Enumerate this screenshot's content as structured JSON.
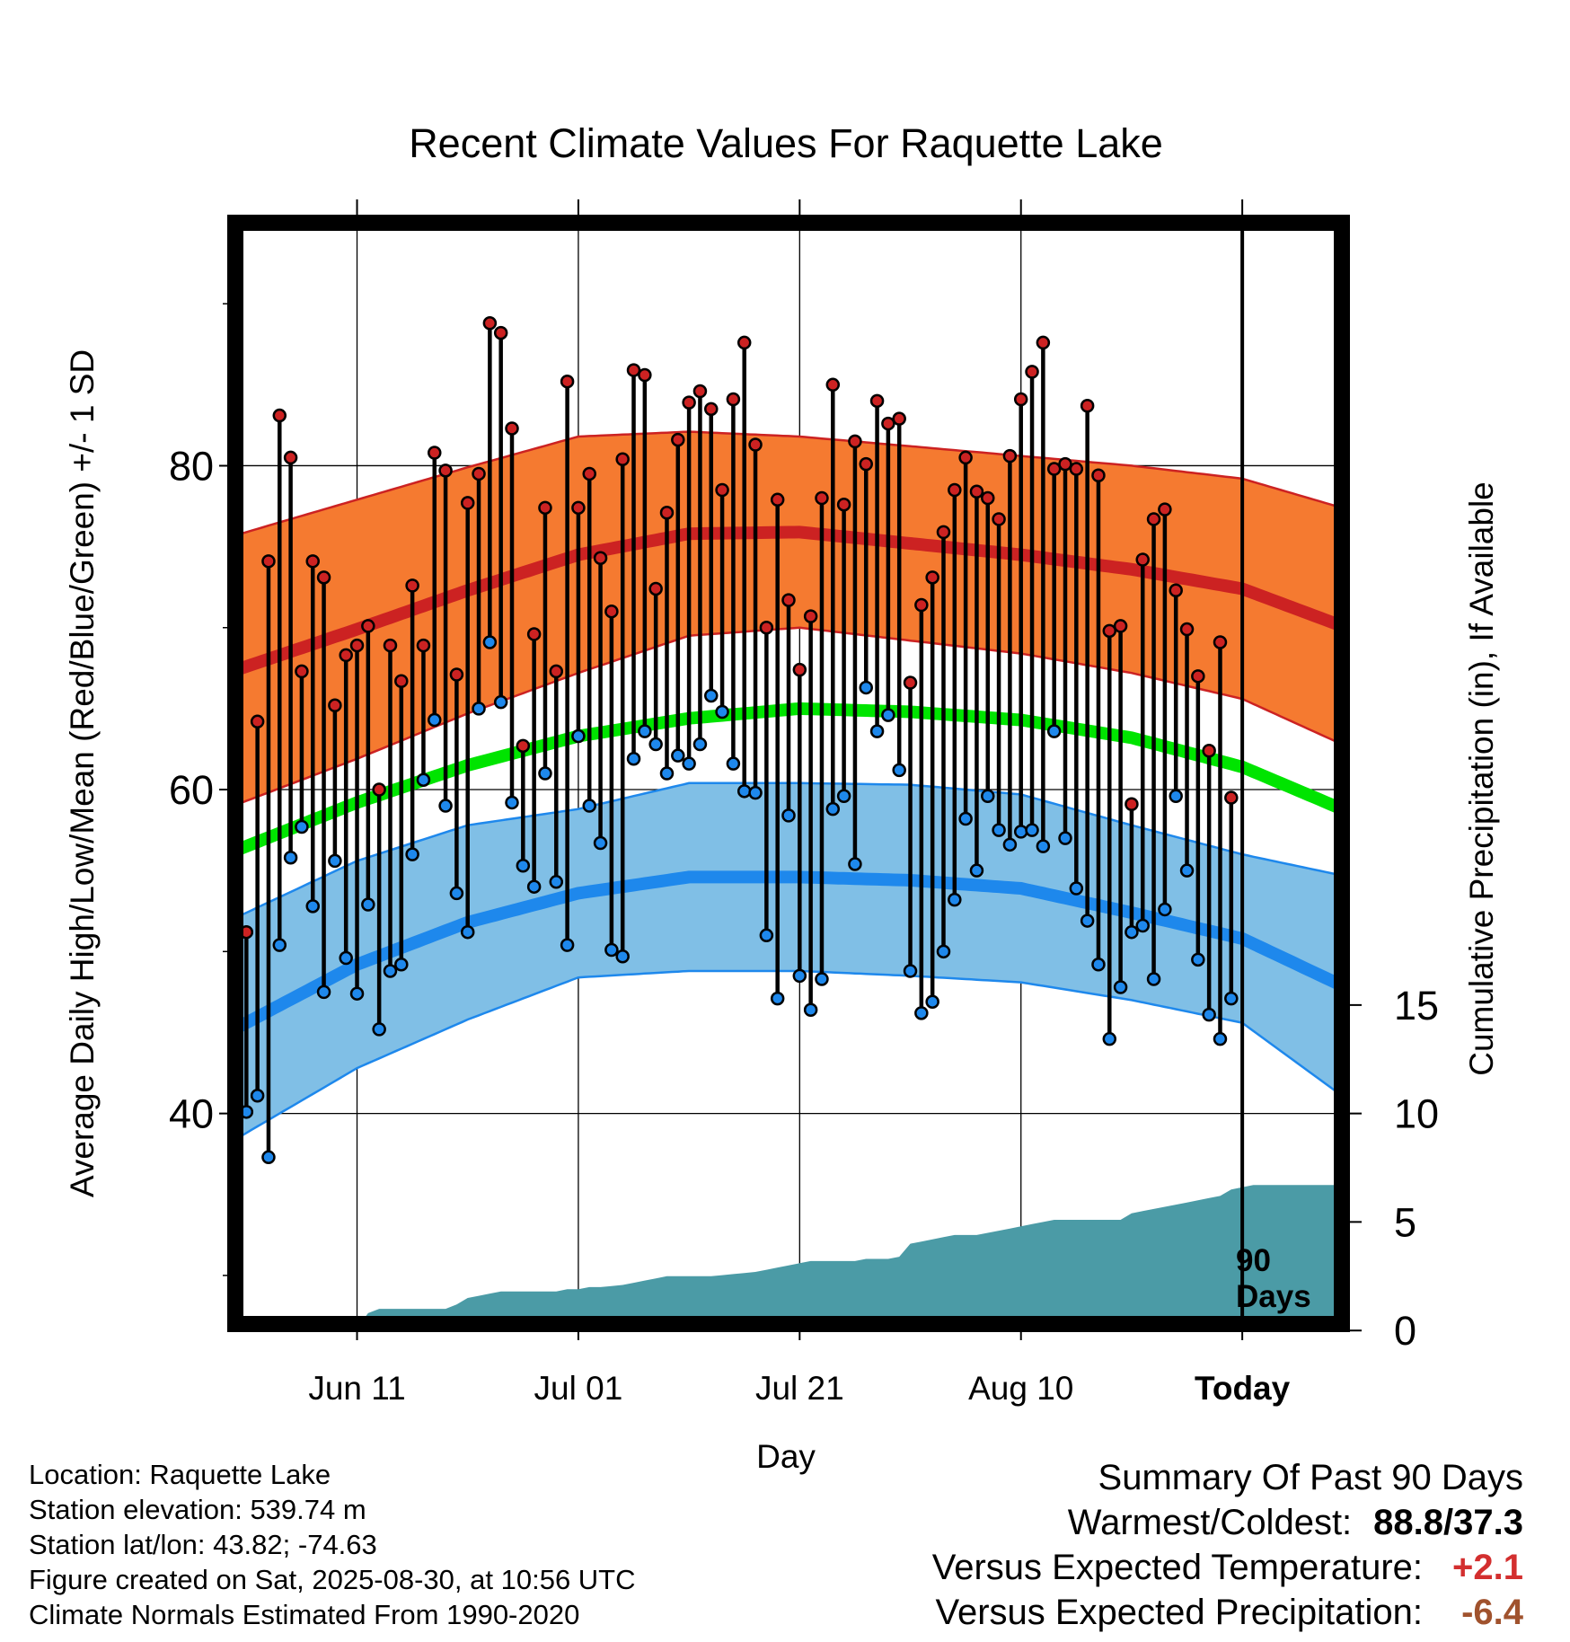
{
  "chart_data": {
    "type": "line",
    "title": "Recent Climate Values For Raquette Lake",
    "xlabel": "Day",
    "ylabel": "Average Daily High/Low/Mean (Red/Blue/Green) +/- 1 SD",
    "y2label": "Cumulative Precipitation (in), If Available",
    "x_tick_labels": [
      "Jun 11",
      "Jul 01",
      "Jul 21",
      "Aug 10",
      "Today"
    ],
    "x_tick_days": [
      10,
      30,
      50,
      70,
      90
    ],
    "xlim": [
      -1,
      99
    ],
    "ylim": [
      27,
      95
    ],
    "y_ticks": [
      40,
      60,
      80
    ],
    "y_minor_ticks": [
      30,
      50,
      70,
      90
    ],
    "y2_ticks": [
      0,
      5,
      10,
      15
    ],
    "y2_ticks_at_temp": [
      26.6,
      33.3,
      40.0,
      46.7
    ],
    "today_marker_label": [
      "90",
      "Days"
    ],
    "grid": true,
    "normals": {
      "days": [
        0,
        10,
        20,
        30,
        40,
        50,
        60,
        70,
        80,
        90,
        99
      ],
      "high_mean": [
        67.6,
        69.9,
        72.3,
        74.5,
        75.8,
        75.9,
        75.2,
        74.5,
        73.6,
        72.4,
        70.1
      ],
      "high_sd": [
        8.3,
        8.0,
        7.6,
        7.3,
        6.3,
        5.9,
        6.0,
        6.1,
        6.4,
        6.8,
        7.3
      ],
      "low_mean": [
        45.6,
        49.2,
        51.8,
        53.6,
        54.6,
        54.6,
        54.4,
        53.9,
        52.4,
        50.8,
        47.9
      ],
      "low_sd": [
        6.8,
        6.4,
        6.0,
        5.2,
        5.8,
        5.8,
        5.9,
        5.8,
        5.4,
        5.2,
        6.8
      ],
      "mean": [
        56.5,
        59.2,
        61.5,
        63.3,
        64.4,
        65.0,
        64.8,
        64.3,
        63.2,
        61.4,
        58.8
      ]
    },
    "series": [
      {
        "name": "High",
        "values": [
          51.2,
          64.2,
          74.1,
          83.1,
          80.5,
          67.3,
          74.1,
          73.1,
          65.2,
          68.3,
          68.9,
          70.1,
          60.0,
          68.9,
          66.7,
          72.6,
          68.9,
          80.8,
          79.7,
          67.1,
          77.7,
          79.5,
          88.8,
          88.2,
          82.3,
          62.7,
          69.6,
          77.4,
          67.3,
          85.2,
          77.4,
          79.5,
          74.3,
          71.0,
          80.4,
          85.9,
          85.6,
          72.4,
          77.1,
          81.6,
          83.9,
          84.6,
          83.5,
          78.5,
          84.1,
          87.6,
          81.3,
          70.0,
          77.9,
          71.7,
          67.4,
          70.7,
          78.0,
          85.0,
          77.6,
          81.5,
          80.1,
          84.0,
          82.6,
          82.9,
          66.6,
          71.4,
          73.1,
          75.9,
          78.5,
          80.5,
          78.4,
          78.0,
          76.7,
          80.6,
          84.1,
          85.8,
          87.6,
          79.8,
          80.1,
          79.8,
          83.7,
          79.4,
          69.8,
          70.1,
          59.1,
          74.2,
          76.7,
          77.3,
          72.3,
          69.9,
          67.0,
          62.4,
          69.1,
          59.5
        ]
      },
      {
        "name": "Low",
        "values": [
          40.1,
          41.1,
          37.3,
          50.4,
          55.8,
          57.7,
          52.8,
          47.5,
          55.6,
          49.6,
          47.4,
          52.9,
          45.2,
          48.8,
          49.2,
          56.0,
          60.6,
          64.3,
          59.0,
          53.6,
          51.2,
          65.0,
          69.1,
          65.4,
          59.2,
          55.3,
          54.0,
          61.0,
          54.3,
          50.4,
          63.3,
          59.0,
          56.7,
          50.1,
          49.7,
          61.9,
          63.6,
          62.8,
          61.0,
          62.1,
          61.6,
          62.8,
          65.8,
          64.8,
          61.6,
          59.9,
          59.8,
          51.0,
          47.1,
          58.4,
          48.5,
          46.4,
          48.3,
          58.8,
          59.6,
          55.4,
          66.3,
          63.6,
          64.6,
          61.2,
          48.8,
          46.2,
          46.9,
          50.0,
          53.2,
          58.2,
          55.0,
          59.6,
          57.5,
          56.6,
          57.4,
          57.5,
          56.5,
          63.6,
          57.0,
          53.9,
          51.9,
          49.2,
          44.6,
          47.8,
          51.2,
          51.6,
          48.3,
          52.6,
          59.6,
          55.0,
          49.5,
          46.1,
          44.6,
          47.1
        ]
      },
      {
        "name": "Cumulative Precipitation",
        "axis": "right",
        "values": [
          0.0,
          0.0,
          0.0,
          0.0,
          0.0,
          0.0,
          0.0,
          0.01,
          0.02,
          0.05,
          0.1,
          0.8,
          1.0,
          1.0,
          1.0,
          1.0,
          1.0,
          1.0,
          1.0,
          1.2,
          1.5,
          1.6,
          1.7,
          1.8,
          1.8,
          1.8,
          1.8,
          1.8,
          1.8,
          1.9,
          1.9,
          2.0,
          2.0,
          2.05,
          2.1,
          2.2,
          2.3,
          2.4,
          2.5,
          2.5,
          2.5,
          2.5,
          2.5,
          2.55,
          2.6,
          2.65,
          2.7,
          2.8,
          2.9,
          3.0,
          3.1,
          3.2,
          3.2,
          3.2,
          3.2,
          3.2,
          3.3,
          3.3,
          3.3,
          3.4,
          4.0,
          4.1,
          4.2,
          4.3,
          4.4,
          4.4,
          4.4,
          4.5,
          4.6,
          4.7,
          4.8,
          4.9,
          5.0,
          5.1,
          5.1,
          5.1,
          5.1,
          5.1,
          5.1,
          5.1,
          5.4,
          5.5,
          5.6,
          5.7,
          5.8,
          5.9,
          6.0,
          6.1,
          6.2,
          6.5,
          6.6,
          6.7,
          6.7,
          6.7,
          6.7,
          6.7,
          6.7,
          6.7,
          6.7,
          6.7
        ]
      }
    ]
  },
  "footer": {
    "location": "Location: Raquette Lake",
    "elevation": "Station elevation: 539.74 m",
    "latlon": "Station lat/lon: 43.82; -74.63",
    "created": "Figure created on Sat, 2025-08-30, at 10:56 UTC",
    "normals": "Climate Normals Estimated From 1990-2020"
  },
  "summary": {
    "title": "Summary Of Past 90 Days",
    "warm_cold_label": "Warmest/Coldest:",
    "warm_cold_value": "88.8/37.3",
    "temp_label": "Versus Expected Temperature:",
    "temp_value": "+2.1",
    "precip_label": "Versus Expected Precipitation:",
    "precip_value": "-6.4"
  },
  "colors": {
    "high_band": "#f57a30",
    "high_mean_line": "#cc2222",
    "low_band": "#80bfe6",
    "low_mean_line": "#1e88ec",
    "mean_line": "#00e400",
    "precip_fill": "#4b9ba6",
    "high_marker": "#cc2222",
    "low_marker": "#1e88ec",
    "temp_anomaly": "#d32f2f",
    "precip_anomaly": "#a0522d"
  }
}
